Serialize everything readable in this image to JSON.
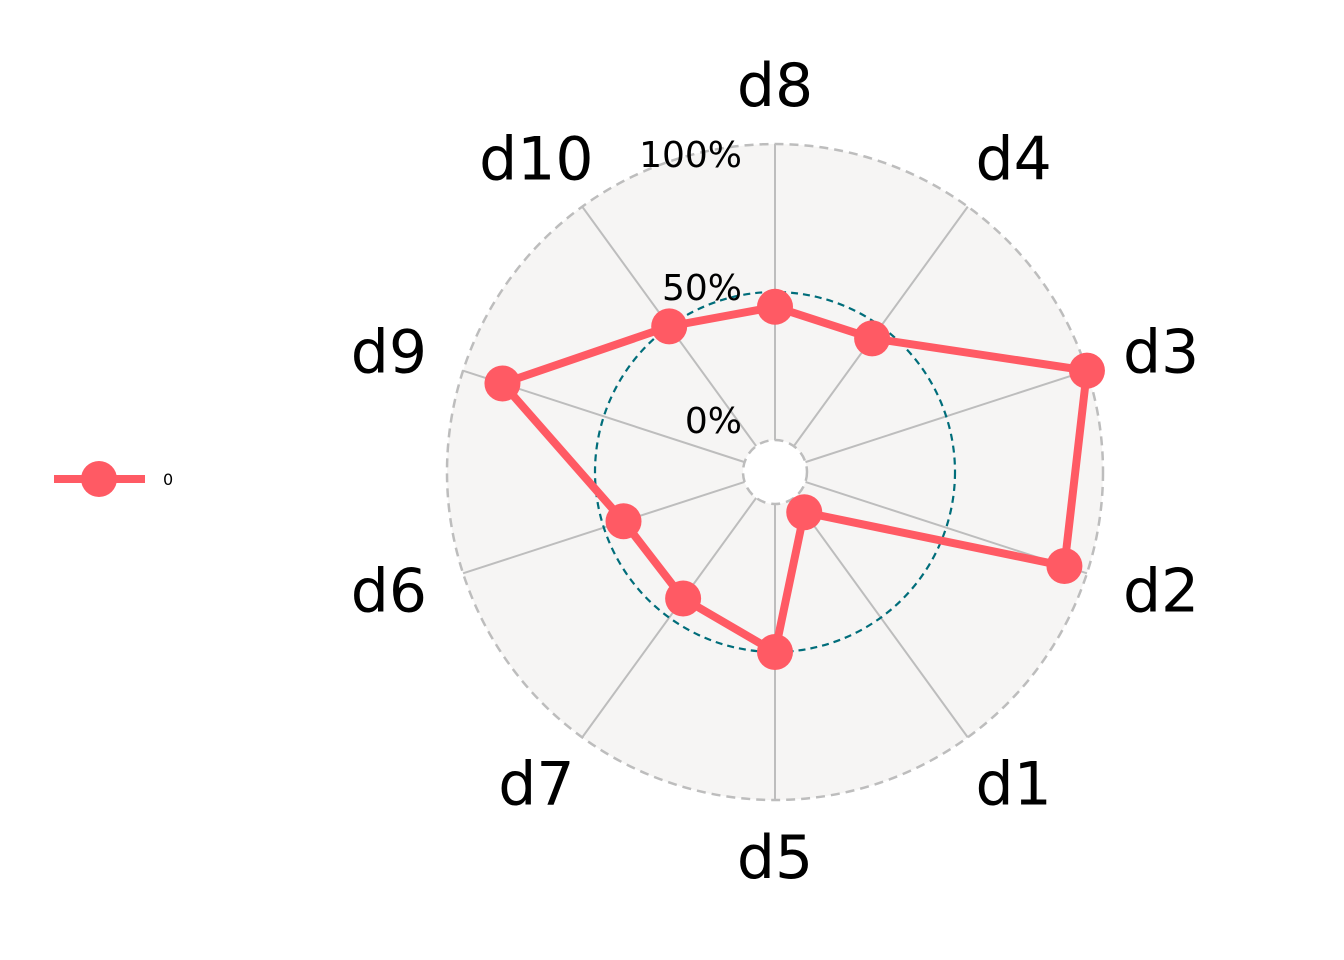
{
  "chart_data": {
    "type": "radar",
    "axes": [
      "d1",
      "d2",
      "d3",
      "d4",
      "d5",
      "d6",
      "d7",
      "d8",
      "d9",
      "d10"
    ],
    "tick_labels": [
      "0%",
      "50%",
      "100%"
    ],
    "rlim": [
      0,
      100
    ],
    "series": [
      {
        "name": "0",
        "color": "#ff5a64",
        "values": {
          "d1": 6,
          "d2": 92,
          "d3": 100,
          "d4": 45,
          "d5": 50,
          "d6": 43,
          "d7": 42,
          "d8": 45,
          "d9": 86,
          "d10": 50
        }
      }
    ],
    "reference_circle": {
      "value": 50,
      "color": "#006d7a"
    },
    "legend": "left",
    "colors": {
      "background": "#f6f5f4",
      "grid": "#bdbdbd"
    }
  }
}
